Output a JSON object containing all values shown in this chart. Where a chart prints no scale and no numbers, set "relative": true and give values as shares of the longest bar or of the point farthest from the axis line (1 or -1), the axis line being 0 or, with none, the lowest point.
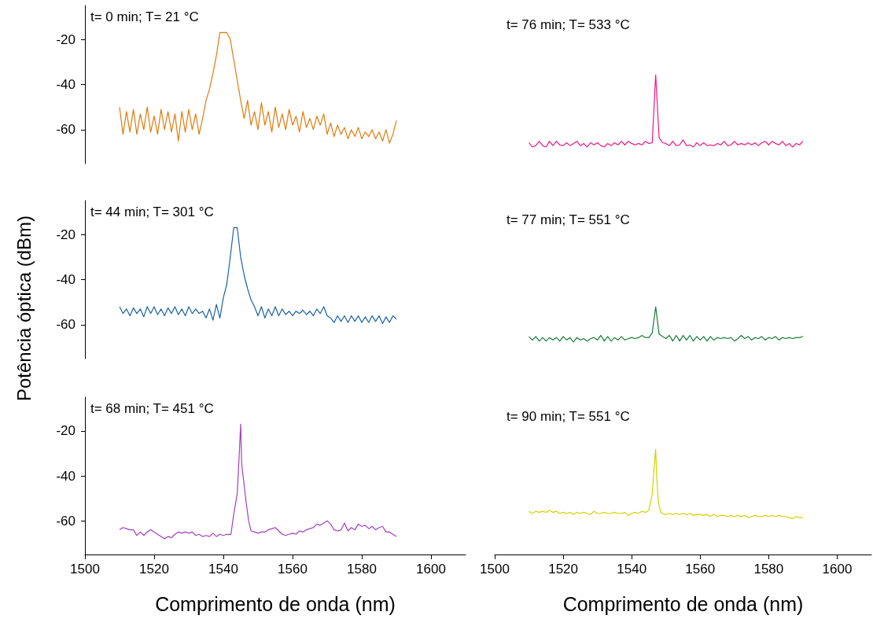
{
  "chart_data": [
    {
      "type": "line",
      "color": "#e07b0d",
      "annotations": [
        "t= 0 min; T= 21 °C"
      ],
      "ylim": [
        -75,
        -5
      ],
      "tick_labels": "y",
      "yticks": [
        -60,
        -40,
        -20
      ],
      "x": [
        1510,
        1511,
        1512,
        1513,
        1514,
        1515,
        1516,
        1517,
        1518,
        1519,
        1520,
        1521,
        1522,
        1523,
        1524,
        1525,
        1526,
        1527,
        1528,
        1529,
        1530,
        1531,
        1532,
        1533,
        1534,
        1535,
        1536,
        1537,
        1538,
        1539,
        1540,
        1541,
        1542,
        1543,
        1544,
        1545,
        1546,
        1547,
        1548,
        1549,
        1550,
        1551,
        1552,
        1553,
        1554,
        1555,
        1556,
        1557,
        1558,
        1559,
        1560,
        1561,
        1562,
        1563,
        1564,
        1565,
        1566,
        1567,
        1568,
        1569,
        1570,
        1571,
        1572,
        1573,
        1574,
        1575,
        1576,
        1577,
        1578,
        1579,
        1580,
        1581,
        1582,
        1583,
        1584,
        1585,
        1586,
        1587,
        1588,
        1589,
        1590
      ],
      "values": [
        -50,
        -62,
        -52,
        -61,
        -51,
        -62,
        -53,
        -60,
        -50,
        -61,
        -54,
        -62,
        -51,
        -60,
        -52,
        -61,
        -53,
        -65,
        -52,
        -61,
        -51,
        -60,
        -53,
        -62,
        -55,
        -47,
        -42,
        -35,
        -27,
        -17,
        -17,
        -17,
        -20,
        -29,
        -38,
        -47,
        -55,
        -47,
        -58,
        -52,
        -60,
        -48,
        -58,
        -52,
        -61,
        -50,
        -59,
        -53,
        -60,
        -51,
        -58,
        -54,
        -61,
        -52,
        -59,
        -55,
        -60,
        -54,
        -58,
        -53,
        -62,
        -57,
        -63,
        -58,
        -62,
        -59,
        -64,
        -60,
        -63,
        -59,
        -64,
        -61,
        -63,
        -60,
        -64,
        -61,
        -65,
        -60,
        -66,
        -62,
        -56
      ]
    },
    {
      "type": "line",
      "color": "#1a62a6",
      "annotations": [
        "t= 44 min; T= 301 °C"
      ],
      "ylabel": "Potência óptica (dBm)",
      "ylim": [
        -75,
        -5
      ],
      "tick_labels": "y",
      "yticks": [
        -60,
        -40,
        -20
      ],
      "x": [
        1510,
        1511,
        1512,
        1513,
        1514,
        1515,
        1516,
        1517,
        1518,
        1519,
        1520,
        1521,
        1522,
        1523,
        1524,
        1525,
        1526,
        1527,
        1528,
        1529,
        1530,
        1531,
        1532,
        1533,
        1534,
        1535,
        1536,
        1537,
        1538,
        1539,
        1540,
        1541,
        1542,
        1543,
        1544,
        1545,
        1546,
        1547,
        1548,
        1549,
        1550,
        1551,
        1552,
        1553,
        1554,
        1555,
        1556,
        1557,
        1558,
        1559,
        1560,
        1561,
        1562,
        1563,
        1564,
        1565,
        1566,
        1567,
        1568,
        1569,
        1570,
        1571,
        1572,
        1573,
        1574,
        1575,
        1576,
        1577,
        1578,
        1579,
        1580,
        1581,
        1582,
        1583,
        1584,
        1585,
        1586,
        1587,
        1588,
        1589,
        1590
      ],
      "values": [
        -52,
        -55,
        -53,
        -56,
        -52.5,
        -55,
        -53,
        -56.5,
        -52,
        -55,
        -52,
        -55.5,
        -53,
        -56,
        -52.5,
        -55,
        -52,
        -55.5,
        -53,
        -56,
        -52,
        -55,
        -53,
        -55,
        -54,
        -57,
        -53,
        -58,
        -51,
        -57,
        -48,
        -42,
        -30,
        -17,
        -17,
        -30,
        -38,
        -44,
        -49,
        -52,
        -56,
        -52,
        -57,
        -53,
        -56,
        -52,
        -56,
        -53,
        -55.5,
        -54,
        -56,
        -54,
        -55,
        -53.5,
        -55.5,
        -54,
        -56,
        -53,
        -55,
        -52,
        -56,
        -57,
        -59,
        -56,
        -58.5,
        -56,
        -59,
        -56,
        -58.5,
        -56,
        -59,
        -56.5,
        -59,
        -56,
        -58.5,
        -56,
        -59.5,
        -56.5,
        -59,
        -56,
        -57.5
      ]
    },
    {
      "type": "line",
      "color": "#a040c0",
      "annotations": [
        "t= 68 min; T= 451 °C"
      ],
      "xlabel": "Comprimento de onda (nm)",
      "xlim": [
        1500,
        1610
      ],
      "ylim": [
        -75,
        -5
      ],
      "xticks": [
        1500,
        1520,
        1540,
        1560,
        1580,
        1600
      ],
      "yticks": [
        -60,
        -40,
        -20
      ],
      "x": [
        1510,
        1511,
        1512,
        1513,
        1514,
        1515,
        1516,
        1517,
        1518,
        1519,
        1520,
        1521,
        1522,
        1523,
        1524,
        1525,
        1526,
        1527,
        1528,
        1529,
        1530,
        1531,
        1532,
        1533,
        1534,
        1535,
        1536,
        1537,
        1538,
        1539,
        1540,
        1541,
        1542.2,
        1543,
        1544,
        1544.6,
        1545.0,
        1545.3,
        1546,
        1546.6,
        1547.3,
        1548,
        1549,
        1550,
        1551,
        1552,
        1553,
        1554,
        1555,
        1556,
        1557,
        1558,
        1559,
        1560,
        1561,
        1562,
        1563,
        1564,
        1565,
        1566,
        1567,
        1568,
        1569,
        1570,
        1571,
        1572,
        1573,
        1574,
        1575,
        1576,
        1577,
        1578,
        1579,
        1580,
        1581,
        1582,
        1583,
        1584,
        1585,
        1586,
        1587,
        1588,
        1589,
        1590
      ],
      "values": [
        -64,
        -63,
        -63.5,
        -64,
        -64,
        -66.5,
        -65,
        -66.5,
        -65,
        -64,
        -65,
        -66,
        -67,
        -68,
        -67,
        -67.5,
        -66,
        -65,
        -65.5,
        -65,
        -65.5,
        -65,
        -66.5,
        -66,
        -67,
        -66.5,
        -67,
        -65.5,
        -67,
        -66,
        -66.5,
        -66,
        -66,
        -57,
        -48,
        -30,
        -17,
        -35,
        -44,
        -52,
        -60,
        -64.5,
        -65,
        -65.5,
        -65,
        -65,
        -64,
        -63.5,
        -63,
        -64.5,
        -66,
        -66.5,
        -66,
        -65.5,
        -66,
        -64.5,
        -65,
        -64,
        -63.5,
        -63,
        -61.5,
        -62,
        -61,
        -60,
        -61.5,
        -64,
        -64.5,
        -64,
        -61,
        -64.5,
        -63,
        -64,
        -61.5,
        -62.5,
        -62,
        -63.5,
        -62.5,
        -64,
        -63,
        -62.5,
        -65,
        -65,
        -66,
        -67
      ]
    },
    {
      "type": "line",
      "color": "#f0187f",
      "annotations": [
        "t= 76 min; T= 533 °C"
      ],
      "relative": true,
      "tick_labels": false,
      "x": [
        1510,
        1511,
        1512,
        1513,
        1514,
        1515,
        1516,
        1517,
        1518,
        1519,
        1520,
        1521,
        1522,
        1523,
        1524,
        1525,
        1526,
        1527,
        1528,
        1529,
        1530,
        1531,
        1532,
        1533,
        1534,
        1535,
        1536,
        1537,
        1538,
        1539,
        1540,
        1541,
        1542,
        1543,
        1544,
        1545,
        1546,
        1547,
        1548,
        1549,
        1550,
        1551,
        1552,
        1553,
        1554,
        1555,
        1556,
        1557,
        1558,
        1559,
        1560,
        1561,
        1562,
        1563,
        1564,
        1565,
        1566,
        1567,
        1568,
        1569,
        1570,
        1571,
        1572,
        1573,
        1574,
        1575,
        1576,
        1577,
        1578,
        1579,
        1580,
        1581,
        1582,
        1583,
        1584,
        1585,
        1586,
        1587,
        1588,
        1589,
        1590
      ],
      "values": [
        0.06,
        0,
        0.02,
        0.08,
        0.02,
        0,
        0.08,
        0.02,
        0.08,
        0.03,
        0.02,
        0.06,
        0.02,
        0.05,
        0.08,
        0.02,
        0.05,
        0,
        0.06,
        0.03,
        0.06,
        0.02,
        0,
        0.05,
        0.02,
        0.06,
        0.03,
        0.08,
        0.03,
        0.08,
        0.05,
        0.03,
        0.05,
        0.03,
        0.08,
        0.05,
        0.06,
        1,
        0.13,
        0.06,
        0.05,
        0.02,
        0.08,
        0.02,
        0.03,
        0.1,
        0.02,
        0.03,
        0,
        0.06,
        0.02,
        0.06,
        0.02,
        0.03,
        0.02,
        0.05,
        0.03,
        0.08,
        0.02,
        0.03,
        0.08,
        0.03,
        0.05,
        0.03,
        0.06,
        0.03,
        0.06,
        0.02,
        0.06,
        0.08,
        0.03,
        0.08,
        0.05,
        0.03,
        0.08,
        0.02,
        0.05,
        0,
        0.05,
        0.03,
        0.08
      ]
    },
    {
      "type": "line",
      "color": "#1a7a3a",
      "annotations": [
        "t= 77 min; T= 551 °C"
      ],
      "relative": true,
      "tick_labels": false,
      "x": [
        1510,
        1511,
        1512,
        1513,
        1514,
        1515,
        1516,
        1517,
        1518,
        1519,
        1520,
        1521,
        1522,
        1523,
        1524,
        1525,
        1526,
        1527,
        1528,
        1529,
        1530,
        1531,
        1532,
        1533,
        1534,
        1535,
        1536,
        1537,
        1538,
        1539,
        1540,
        1541,
        1542,
        1543,
        1544,
        1545,
        1546,
        1547,
        1548,
        1549,
        1550,
        1551,
        1552,
        1553,
        1554,
        1555,
        1556,
        1557,
        1558,
        1559,
        1560,
        1561,
        1562,
        1563,
        1564,
        1565,
        1566,
        1567,
        1568,
        1569,
        1570,
        1571,
        1572,
        1573,
        1574,
        1575,
        1576,
        1577,
        1578,
        1579,
        1580,
        1581,
        1582,
        1583,
        1584,
        1585,
        1586,
        1587,
        1588,
        1589,
        1590
      ],
      "values": [
        0.16,
        0.06,
        0.16,
        0.03,
        0.13,
        0.03,
        0.13,
        0.06,
        0.13,
        0.03,
        0.16,
        0.06,
        0.13,
        0,
        0.13,
        0.06,
        0.1,
        0.03,
        0.1,
        0.13,
        0.06,
        0.19,
        0.03,
        0.16,
        0.03,
        0.13,
        0.06,
        0.16,
        0.06,
        0.1,
        0.13,
        0.1,
        0.13,
        0.19,
        0.13,
        0.13,
        0.26,
        1,
        0.23,
        0.16,
        0.1,
        0.19,
        0.03,
        0.19,
        0.03,
        0.19,
        0.06,
        0.19,
        0.03,
        0.16,
        0.06,
        0.16,
        0.03,
        0.16,
        0.06,
        0.13,
        0.1,
        0.13,
        0.1,
        0.13,
        0.03,
        0.1,
        0.19,
        0.1,
        0.16,
        0.06,
        0.13,
        0.1,
        0.16,
        0.06,
        0.13,
        0.1,
        0.16,
        0.06,
        0.13,
        0.1,
        0.13,
        0.1,
        0.13,
        0.13,
        0.16
      ]
    },
    {
      "type": "line",
      "color": "#d4d000",
      "annotations": [
        "t= 90 min; T= 551 °C"
      ],
      "xlabel": "Comprimento de onda (nm)",
      "xlim": [
        1500,
        1610
      ],
      "relative": true,
      "tick_labels": "x",
      "xticks": [
        1500,
        1520,
        1540,
        1560,
        1580,
        1600
      ],
      "x": [
        1510,
        1511,
        1512,
        1513,
        1514,
        1515,
        1516,
        1517,
        1518,
        1519,
        1520,
        1521,
        1522,
        1523,
        1524,
        1525,
        1526,
        1527,
        1528,
        1529,
        1530,
        1531,
        1532,
        1533,
        1534,
        1535,
        1536,
        1537,
        1538,
        1539,
        1540,
        1541,
        1542,
        1543,
        1544,
        1545,
        1546,
        1546.6,
        1547.0,
        1547.3,
        1547.8,
        1548.5,
        1549,
        1550,
        1551,
        1552,
        1553,
        1554,
        1555,
        1556,
        1557,
        1558,
        1559,
        1560,
        1561,
        1562,
        1563,
        1564,
        1565,
        1566,
        1567,
        1568,
        1569,
        1570,
        1571,
        1572,
        1573,
        1574,
        1575,
        1576,
        1577,
        1578,
        1579,
        1580,
        1581,
        1582,
        1583,
        1584,
        1585,
        1586,
        1587,
        1588,
        1589,
        1590
      ],
      "values": [
        0.41,
        0.39,
        0.41,
        0.4,
        0.41,
        0.4,
        0.42,
        0.4,
        0.41,
        0.39,
        0.4,
        0.39,
        0.4,
        0.38,
        0.4,
        0.39,
        0.4,
        0.39,
        0.38,
        0.41,
        0.39,
        0.39,
        0.4,
        0.39,
        0.39,
        0.4,
        0.39,
        0.39,
        0.4,
        0.37,
        0.39,
        0.4,
        0.39,
        0.41,
        0.4,
        0.42,
        0.57,
        0.85,
        1,
        0.74,
        0.49,
        0.4,
        0.39,
        0.38,
        0.39,
        0.38,
        0.39,
        0.38,
        0.39,
        0.38,
        0.39,
        0.37,
        0.38,
        0.38,
        0.37,
        0.38,
        0.36,
        0.38,
        0.36,
        0.37,
        0.37,
        0.36,
        0.37,
        0.36,
        0.37,
        0.36,
        0.37,
        0.35,
        0.36,
        0.37,
        0.36,
        0.36,
        0.37,
        0.36,
        0.37,
        0.36,
        0.37,
        0.36,
        0.36,
        0.35,
        0.34,
        0.36,
        0.35,
        0.35
      ]
    }
  ]
}
